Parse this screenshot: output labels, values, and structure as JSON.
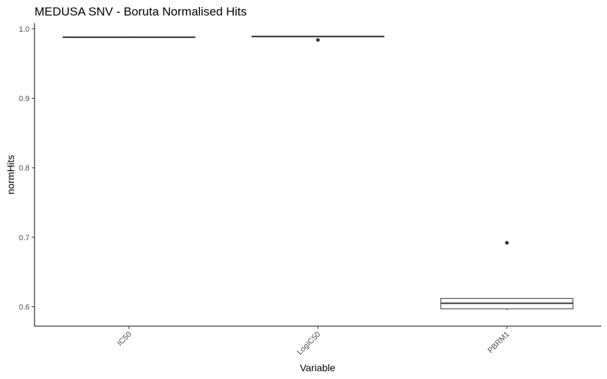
{
  "chart_data": {
    "type": "boxplot",
    "title": "MEDUSA SNV - Boruta Normalised Hits",
    "xlabel": "Variable",
    "ylabel": "normHits",
    "categories": [
      "IC50",
      "LogIC50",
      "PBRM1"
    ],
    "ylim": [
      0.572,
      1.008
    ],
    "yticks": [
      0.6,
      0.7,
      0.8,
      0.9,
      1.0
    ],
    "ytick_labels": [
      "0.6",
      "0.7",
      "0.8",
      "0.9",
      "1.0"
    ],
    "grid": false,
    "legend": "none",
    "boxes": [
      {
        "category": "IC50",
        "lower_whisker": 0.988,
        "q1": 0.988,
        "median": 0.988,
        "q3": 0.988,
        "upper_whisker": 0.989,
        "outliers": []
      },
      {
        "category": "LogIC50",
        "lower_whisker": 0.989,
        "q1": 0.989,
        "median": 0.989,
        "q3": 0.989,
        "upper_whisker": 0.989,
        "outliers": [
          0.984
        ]
      },
      {
        "category": "PBRM1",
        "lower_whisker": 0.595,
        "q1": 0.597,
        "median": 0.605,
        "q3": 0.612,
        "upper_whisker": 0.612,
        "outliers": [
          0.692
        ]
      }
    ],
    "colors": {
      "box_line": "#333333",
      "box_fill": "#ffffff",
      "axis": "#000000",
      "tick_text": "#4d4d4d"
    }
  }
}
